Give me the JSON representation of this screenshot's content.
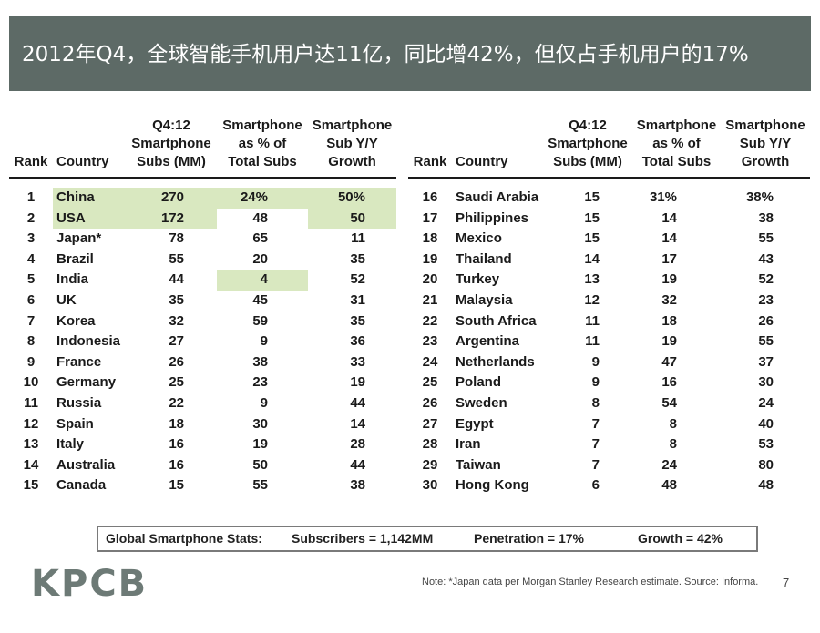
{
  "title": "2012年Q4，全球智能手机用户达11亿，同比增42%，但仅占手机用户的17%",
  "table": {
    "headers": {
      "rank": "Rank",
      "country": "Country",
      "subs_l1": "Q4:12",
      "subs_l2": "Smartphone",
      "subs_l3": "Subs (MM)",
      "pct_l1": "Smartphone",
      "pct_l2": "as % of",
      "pct_l3": "Total Subs",
      "growth_l1": "Smartphone",
      "growth_l2": "Sub Y/Y",
      "growth_l3": "Growth"
    },
    "left_rows": [
      {
        "rank": "1",
        "country": "China",
        "subs": "270",
        "pct": "24%",
        "growth": "50%"
      },
      {
        "rank": "2",
        "country": "USA",
        "subs": "172",
        "pct": "48",
        "growth": "50"
      },
      {
        "rank": "3",
        "country": "Japan*",
        "subs": "78",
        "pct": "65",
        "growth": "11"
      },
      {
        "rank": "4",
        "country": "Brazil",
        "subs": "55",
        "pct": "20",
        "growth": "35"
      },
      {
        "rank": "5",
        "country": "India",
        "subs": "44",
        "pct": "4",
        "growth": "52"
      },
      {
        "rank": "6",
        "country": "UK",
        "subs": "35",
        "pct": "45",
        "growth": "31"
      },
      {
        "rank": "7",
        "country": "Korea",
        "subs": "32",
        "pct": "59",
        "growth": "35"
      },
      {
        "rank": "8",
        "country": "Indonesia",
        "subs": "27",
        "pct": "9",
        "growth": "36"
      },
      {
        "rank": "9",
        "country": "France",
        "subs": "26",
        "pct": "38",
        "growth": "33"
      },
      {
        "rank": "10",
        "country": "Germany",
        "subs": "25",
        "pct": "23",
        "growth": "19"
      },
      {
        "rank": "11",
        "country": "Russia",
        "subs": "22",
        "pct": "9",
        "growth": "44"
      },
      {
        "rank": "12",
        "country": "Spain",
        "subs": "18",
        "pct": "30",
        "growth": "14"
      },
      {
        "rank": "13",
        "country": "Italy",
        "subs": "16",
        "pct": "19",
        "growth": "28"
      },
      {
        "rank": "14",
        "country": "Australia",
        "subs": "16",
        "pct": "50",
        "growth": "44"
      },
      {
        "rank": "15",
        "country": "Canada",
        "subs": "15",
        "pct": "55",
        "growth": "38"
      }
    ],
    "right_rows": [
      {
        "rank": "16",
        "country": "Saudi Arabia",
        "subs": "15",
        "pct": "31%",
        "growth": "38%"
      },
      {
        "rank": "17",
        "country": "Philippines",
        "subs": "15",
        "pct": "14",
        "growth": "38"
      },
      {
        "rank": "18",
        "country": "Mexico",
        "subs": "15",
        "pct": "14",
        "growth": "55"
      },
      {
        "rank": "19",
        "country": "Thailand",
        "subs": "14",
        "pct": "17",
        "growth": "43"
      },
      {
        "rank": "20",
        "country": "Turkey",
        "subs": "13",
        "pct": "19",
        "growth": "52"
      },
      {
        "rank": "21",
        "country": "Malaysia",
        "subs": "12",
        "pct": "32",
        "growth": "23"
      },
      {
        "rank": "22",
        "country": "South Africa",
        "subs": "11",
        "pct": "18",
        "growth": "26"
      },
      {
        "rank": "23",
        "country": "Argentina",
        "subs": "11",
        "pct": "19",
        "growth": "55"
      },
      {
        "rank": "24",
        "country": "Netherlands",
        "subs": "9",
        "pct": "47",
        "growth": "37"
      },
      {
        "rank": "25",
        "country": "Poland",
        "subs": "9",
        "pct": "16",
        "growth": "30"
      },
      {
        "rank": "26",
        "country": "Sweden",
        "subs": "8",
        "pct": "54",
        "growth": "24"
      },
      {
        "rank": "27",
        "country": "Egypt",
        "subs": "7",
        "pct": "8",
        "growth": "40"
      },
      {
        "rank": "28",
        "country": "Iran",
        "subs": "7",
        "pct": "8",
        "growth": "53"
      },
      {
        "rank": "29",
        "country": "Taiwan",
        "subs": "7",
        "pct": "24",
        "growth": "80"
      },
      {
        "rank": "30",
        "country": "Hong Kong",
        "subs": "6",
        "pct": "48",
        "growth": "48"
      }
    ],
    "highlight_color": "#d9e8c0"
  },
  "stats": {
    "label": "Global Smartphone Stats:",
    "subscribers": "Subscribers = 1,142MM",
    "penetration": "Penetration = 17%",
    "growth": "Growth = 42%"
  },
  "logo": "KPCB",
  "note": "Note: *Japan data per Morgan Stanley Research estimate.  Source: Informa.",
  "page_number": "7",
  "colors": {
    "title_bar": "#5d6a66",
    "logo": "#6d7a76",
    "highlight": "#d9e8c0"
  }
}
